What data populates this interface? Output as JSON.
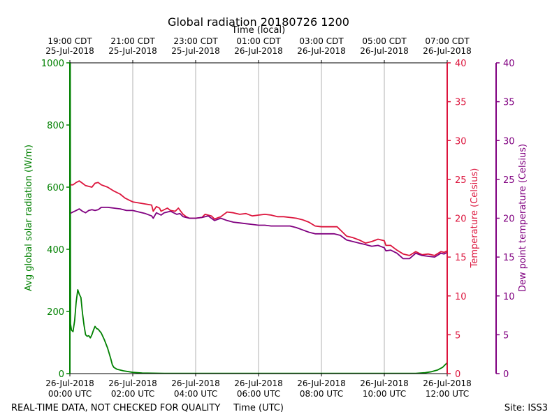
{
  "chart_data": {
    "type": "line",
    "title": "Global radiation 20180726 1200",
    "top_axis_label": "Time (local)",
    "xlabel": "Time (UTC)",
    "footer_left": "REAL-TIME DATA, NOT CHECKED FOR QUALITY",
    "footer_right": "Site: ISS3",
    "xlim": [
      0,
      12
    ],
    "x_ticks_utc": [
      {
        "x": 0,
        "date": "26-Jul-2018",
        "time": "00:00 UTC"
      },
      {
        "x": 2,
        "date": "26-Jul-2018",
        "time": "02:00 UTC"
      },
      {
        "x": 4,
        "date": "26-Jul-2018",
        "time": "04:00 UTC"
      },
      {
        "x": 6,
        "date": "26-Jul-2018",
        "time": "06:00 UTC"
      },
      {
        "x": 8,
        "date": "26-Jul-2018",
        "time": "08:00 UTC"
      },
      {
        "x": 10,
        "date": "26-Jul-2018",
        "time": "10:00 UTC"
      },
      {
        "x": 12,
        "date": "26-Jul-2018",
        "time": "12:00 UTC"
      }
    ],
    "x_ticks_local": [
      {
        "x": 0,
        "time": "19:00 CDT",
        "date": "25-Jul-2018"
      },
      {
        "x": 2,
        "time": "21:00 CDT",
        "date": "25-Jul-2018"
      },
      {
        "x": 4,
        "time": "23:00 CDT",
        "date": "25-Jul-2018"
      },
      {
        "x": 6,
        "time": "01:00 CDT",
        "date": "26-Jul-2018"
      },
      {
        "x": 8,
        "time": "03:00 CDT",
        "date": "26-Jul-2018"
      },
      {
        "x": 10,
        "time": "05:00 CDT",
        "date": "26-Jul-2018"
      },
      {
        "x": 12,
        "time": "07:00 CDT",
        "date": "26-Jul-2018"
      }
    ],
    "grid": "vertical",
    "axes": {
      "radiation": {
        "label": "Avg global solar radiation (W/m)",
        "ylim": [
          0,
          1000
        ],
        "ticks": [
          0,
          200,
          400,
          600,
          800,
          1000
        ],
        "color": "#008000"
      },
      "temperature": {
        "label": "Temperature (Celsius)",
        "ylim": [
          0,
          40
        ],
        "ticks": [
          0,
          5,
          10,
          15,
          20,
          25,
          30,
          35,
          40
        ],
        "color": "#dc143c"
      },
      "dewpoint": {
        "label": "Dew point temperature (Celsius)",
        "ylim": [
          0,
          40
        ],
        "ticks": [
          0,
          5,
          10,
          15,
          20,
          25,
          30,
          35,
          40
        ],
        "color": "#800080"
      }
    },
    "series": [
      {
        "axis": "radiation",
        "color": "#008000",
        "points": [
          [
            0,
            0
          ],
          [
            0.01,
            1000
          ],
          [
            0.02,
            160
          ],
          [
            0.05,
            140
          ],
          [
            0.1,
            135
          ],
          [
            0.15,
            170
          ],
          [
            0.2,
            230
          ],
          [
            0.25,
            270
          ],
          [
            0.3,
            255
          ],
          [
            0.35,
            245
          ],
          [
            0.4,
            195
          ],
          [
            0.45,
            155
          ],
          [
            0.5,
            125
          ],
          [
            0.55,
            120
          ],
          [
            0.6,
            122
          ],
          [
            0.65,
            115
          ],
          [
            0.7,
            125
          ],
          [
            0.75,
            140
          ],
          [
            0.8,
            152
          ],
          [
            0.85,
            145
          ],
          [
            0.9,
            143
          ],
          [
            1.0,
            130
          ],
          [
            1.1,
            108
          ],
          [
            1.2,
            82
          ],
          [
            1.3,
            48
          ],
          [
            1.35,
            28
          ],
          [
            1.4,
            20
          ],
          [
            1.5,
            14
          ],
          [
            1.7,
            9
          ],
          [
            2.0,
            4
          ],
          [
            2.3,
            2
          ],
          [
            3.0,
            1
          ],
          [
            11.0,
            1
          ],
          [
            11.3,
            3
          ],
          [
            11.5,
            6
          ],
          [
            11.7,
            12
          ],
          [
            11.85,
            20
          ],
          [
            12.0,
            35
          ]
        ]
      },
      {
        "axis": "temperature",
        "color": "#dc143c",
        "points": [
          [
            0,
            24.3
          ],
          [
            0.1,
            24.3
          ],
          [
            0.2,
            24.6
          ],
          [
            0.3,
            24.8
          ],
          [
            0.4,
            24.5
          ],
          [
            0.5,
            24.2
          ],
          [
            0.6,
            24.1
          ],
          [
            0.7,
            24.0
          ],
          [
            0.8,
            24.5
          ],
          [
            0.9,
            24.6
          ],
          [
            1.0,
            24.3
          ],
          [
            1.2,
            24.0
          ],
          [
            1.4,
            23.5
          ],
          [
            1.6,
            23.1
          ],
          [
            1.75,
            22.6
          ],
          [
            1.9,
            22.3
          ],
          [
            2.0,
            22.1
          ],
          [
            2.3,
            21.9
          ],
          [
            2.6,
            21.7
          ],
          [
            2.65,
            20.9
          ],
          [
            2.75,
            21.5
          ],
          [
            2.85,
            21.3
          ],
          [
            2.9,
            20.9
          ],
          [
            3.1,
            21.3
          ],
          [
            3.2,
            21.0
          ],
          [
            3.35,
            20.9
          ],
          [
            3.45,
            21.3
          ],
          [
            3.6,
            20.5
          ],
          [
            3.7,
            20.2
          ],
          [
            3.8,
            20.0
          ],
          [
            4.0,
            20.0
          ],
          [
            4.2,
            20.1
          ],
          [
            4.3,
            20.5
          ],
          [
            4.5,
            20.3
          ],
          [
            4.6,
            19.9
          ],
          [
            4.8,
            20.2
          ],
          [
            5.0,
            20.8
          ],
          [
            5.2,
            20.7
          ],
          [
            5.4,
            20.5
          ],
          [
            5.6,
            20.6
          ],
          [
            5.8,
            20.3
          ],
          [
            6.0,
            20.4
          ],
          [
            6.2,
            20.5
          ],
          [
            6.4,
            20.4
          ],
          [
            6.6,
            20.2
          ],
          [
            6.8,
            20.2
          ],
          [
            7.0,
            20.1
          ],
          [
            7.2,
            20.0
          ],
          [
            7.4,
            19.8
          ],
          [
            7.6,
            19.5
          ],
          [
            7.8,
            19.0
          ],
          [
            8.0,
            18.9
          ],
          [
            8.2,
            18.9
          ],
          [
            8.5,
            18.9
          ],
          [
            8.6,
            18.5
          ],
          [
            8.7,
            18.1
          ],
          [
            8.8,
            17.7
          ],
          [
            9.0,
            17.5
          ],
          [
            9.2,
            17.2
          ],
          [
            9.4,
            16.8
          ],
          [
            9.6,
            17.0
          ],
          [
            9.8,
            17.3
          ],
          [
            10.0,
            17.1
          ],
          [
            10.05,
            16.5
          ],
          [
            10.2,
            16.5
          ],
          [
            10.3,
            16.2
          ],
          [
            10.4,
            15.9
          ],
          [
            10.6,
            15.4
          ],
          [
            10.8,
            15.2
          ],
          [
            11.0,
            15.7
          ],
          [
            11.2,
            15.3
          ],
          [
            11.4,
            15.4
          ],
          [
            11.6,
            15.2
          ],
          [
            11.8,
            15.7
          ],
          [
            11.9,
            15.6
          ],
          [
            12.0,
            15.8
          ]
        ]
      },
      {
        "axis": "dewpoint",
        "color": "#800080",
        "points": [
          [
            0,
            20.6
          ],
          [
            0.1,
            20.8
          ],
          [
            0.2,
            21.0
          ],
          [
            0.3,
            21.2
          ],
          [
            0.4,
            20.9
          ],
          [
            0.5,
            20.7
          ],
          [
            0.6,
            21.0
          ],
          [
            0.7,
            21.1
          ],
          [
            0.8,
            21.0
          ],
          [
            0.9,
            21.1
          ],
          [
            1.0,
            21.4
          ],
          [
            1.2,
            21.4
          ],
          [
            1.4,
            21.3
          ],
          [
            1.6,
            21.2
          ],
          [
            1.8,
            21.0
          ],
          [
            2.0,
            21.0
          ],
          [
            2.2,
            20.8
          ],
          [
            2.4,
            20.6
          ],
          [
            2.6,
            20.3
          ],
          [
            2.65,
            20.0
          ],
          [
            2.75,
            20.7
          ],
          [
            2.9,
            20.4
          ],
          [
            3.0,
            20.7
          ],
          [
            3.2,
            20.9
          ],
          [
            3.4,
            20.5
          ],
          [
            3.5,
            20.6
          ],
          [
            3.6,
            20.2
          ],
          [
            3.8,
            20.0
          ],
          [
            4.0,
            20.0
          ],
          [
            4.2,
            20.1
          ],
          [
            4.4,
            20.3
          ],
          [
            4.5,
            20.0
          ],
          [
            4.6,
            19.7
          ],
          [
            4.8,
            20.0
          ],
          [
            5.0,
            19.7
          ],
          [
            5.2,
            19.5
          ],
          [
            5.4,
            19.4
          ],
          [
            5.6,
            19.3
          ],
          [
            5.8,
            19.2
          ],
          [
            6.0,
            19.1
          ],
          [
            6.2,
            19.1
          ],
          [
            6.4,
            19.0
          ],
          [
            6.6,
            19.0
          ],
          [
            6.8,
            19.0
          ],
          [
            7.0,
            19.0
          ],
          [
            7.2,
            18.8
          ],
          [
            7.4,
            18.5
          ],
          [
            7.6,
            18.2
          ],
          [
            7.8,
            18.0
          ],
          [
            8.0,
            18.0
          ],
          [
            8.2,
            18.0
          ],
          [
            8.4,
            18.0
          ],
          [
            8.6,
            17.8
          ],
          [
            8.8,
            17.2
          ],
          [
            9.0,
            17.0
          ],
          [
            9.2,
            16.8
          ],
          [
            9.4,
            16.6
          ],
          [
            9.6,
            16.4
          ],
          [
            9.8,
            16.5
          ],
          [
            10.0,
            16.2
          ],
          [
            10.05,
            15.8
          ],
          [
            10.2,
            15.9
          ],
          [
            10.4,
            15.5
          ],
          [
            10.6,
            14.8
          ],
          [
            10.8,
            14.8
          ],
          [
            11.0,
            15.5
          ],
          [
            11.2,
            15.2
          ],
          [
            11.4,
            15.1
          ],
          [
            11.6,
            15.0
          ],
          [
            11.8,
            15.5
          ],
          [
            11.9,
            15.4
          ],
          [
            12.0,
            15.6
          ]
        ]
      }
    ]
  }
}
